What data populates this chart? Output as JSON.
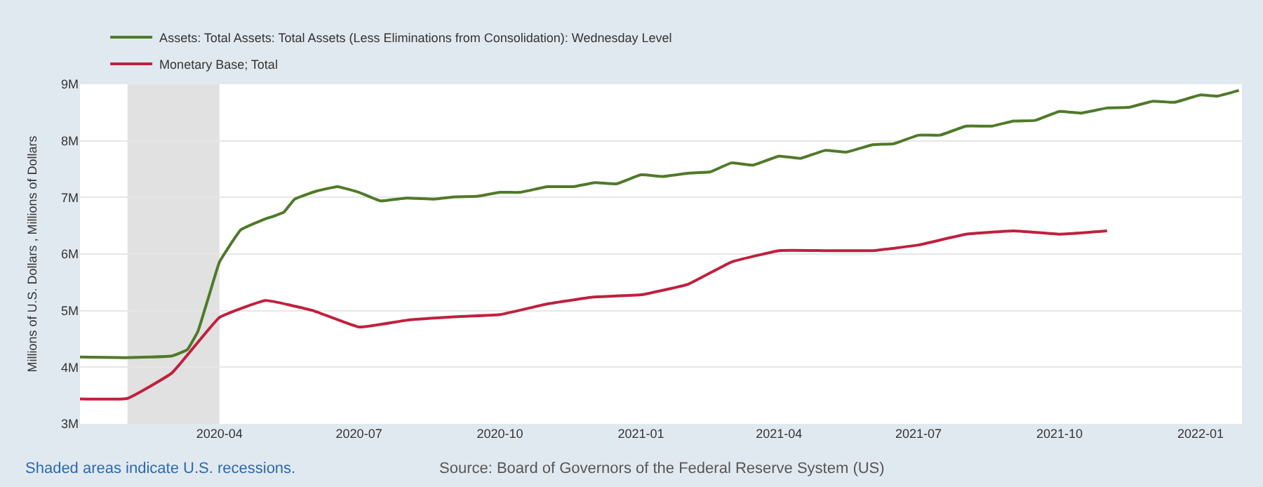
{
  "chart_data": {
    "type": "line",
    "ylabel": "Millions of U.S. Dollars , Millions of Dollars",
    "xlim": [
      "2020-01-01",
      "2022-01-28"
    ],
    "xticks": [
      "2020-04",
      "2020-07",
      "2020-10",
      "2021-01",
      "2021-04",
      "2021-07",
      "2021-10",
      "2022-01"
    ],
    "ylim": [
      3,
      9
    ],
    "yticks": [
      {
        "value": 3,
        "label": "3M"
      },
      {
        "value": 4,
        "label": "4M"
      },
      {
        "value": 5,
        "label": "5M"
      },
      {
        "value": 6,
        "label": "6M"
      },
      {
        "value": 7,
        "label": "7M"
      },
      {
        "value": 8,
        "label": "8M"
      },
      {
        "value": 9,
        "label": "9M"
      }
    ],
    "grid": "y",
    "legend": "top left",
    "series": [
      {
        "name": "Assets: Total Assets: Total Assets (Less Eliminations from Consolidation): Wednesday Level",
        "color": "#4f7a28",
        "x": [
          "2020-01-01",
          "2020-02-01",
          "2020-03-01",
          "2020-03-11",
          "2020-03-18",
          "2020-03-25",
          "2020-04-01",
          "2020-04-15",
          "2020-04-29",
          "2020-05-13",
          "2020-05-20",
          "2020-06-03",
          "2020-06-17",
          "2020-07-01",
          "2020-07-15",
          "2020-08-01",
          "2020-08-19",
          "2020-09-02",
          "2020-09-16",
          "2020-10-01",
          "2020-10-14",
          "2020-11-01",
          "2020-11-18",
          "2020-12-02",
          "2020-12-16",
          "2021-01-01",
          "2021-01-15",
          "2021-02-01",
          "2021-02-15",
          "2021-03-01",
          "2021-03-15",
          "2021-04-01",
          "2021-04-15",
          "2021-05-01",
          "2021-05-15",
          "2021-06-01",
          "2021-06-15",
          "2021-07-01",
          "2021-07-15",
          "2021-08-01",
          "2021-08-18",
          "2021-09-01",
          "2021-09-15",
          "2021-10-01",
          "2021-10-15",
          "2021-11-01",
          "2021-11-15",
          "2021-12-01",
          "2021-12-15",
          "2022-01-01",
          "2022-01-12",
          "2022-01-26"
        ],
        "values": [
          4.18,
          4.17,
          4.2,
          4.31,
          4.64,
          5.25,
          5.86,
          6.43,
          6.6,
          6.74,
          6.97,
          7.11,
          7.19,
          7.09,
          6.94,
          6.99,
          6.97,
          7.01,
          7.02,
          7.09,
          7.09,
          7.19,
          7.19,
          7.26,
          7.24,
          7.4,
          7.37,
          7.43,
          7.45,
          7.61,
          7.57,
          7.73,
          7.69,
          7.83,
          7.8,
          7.93,
          7.95,
          8.1,
          8.1,
          8.26,
          8.26,
          8.35,
          8.36,
          8.52,
          8.49,
          8.58,
          8.59,
          8.7,
          8.68,
          8.81,
          8.79,
          8.89
        ]
      },
      {
        "name": "Monetary Base; Total",
        "color": "#c0203e",
        "x": [
          "2020-01-01",
          "2020-02-01",
          "2020-03-01",
          "2020-04-01",
          "2020-05-01",
          "2020-06-01",
          "2020-07-01",
          "2020-08-01",
          "2020-09-01",
          "2020-10-01",
          "2020-11-01",
          "2020-12-01",
          "2021-01-01",
          "2021-02-01",
          "2021-03-01",
          "2021-04-01",
          "2021-05-01",
          "2021-06-01",
          "2021-07-01",
          "2021-08-01",
          "2021-09-01",
          "2021-10-01",
          "2021-11-01"
        ],
        "values": [
          3.44,
          3.45,
          3.9,
          4.88,
          5.18,
          5.0,
          4.71,
          4.83,
          4.89,
          4.93,
          5.12,
          5.24,
          5.28,
          5.47,
          5.86,
          6.06,
          6.06,
          6.06,
          6.16,
          6.35,
          6.41,
          6.35,
          6.41
        ]
      }
    ],
    "bands": [
      {
        "axis": "x",
        "from": "2020-02-01",
        "to": "2020-04-01",
        "color": "#e1e1e1"
      }
    ],
    "annotations": [
      "Shaded areas indicate U.S. recessions.",
      "Source: Board of Governors of the Federal Reserve System (US)"
    ]
  }
}
